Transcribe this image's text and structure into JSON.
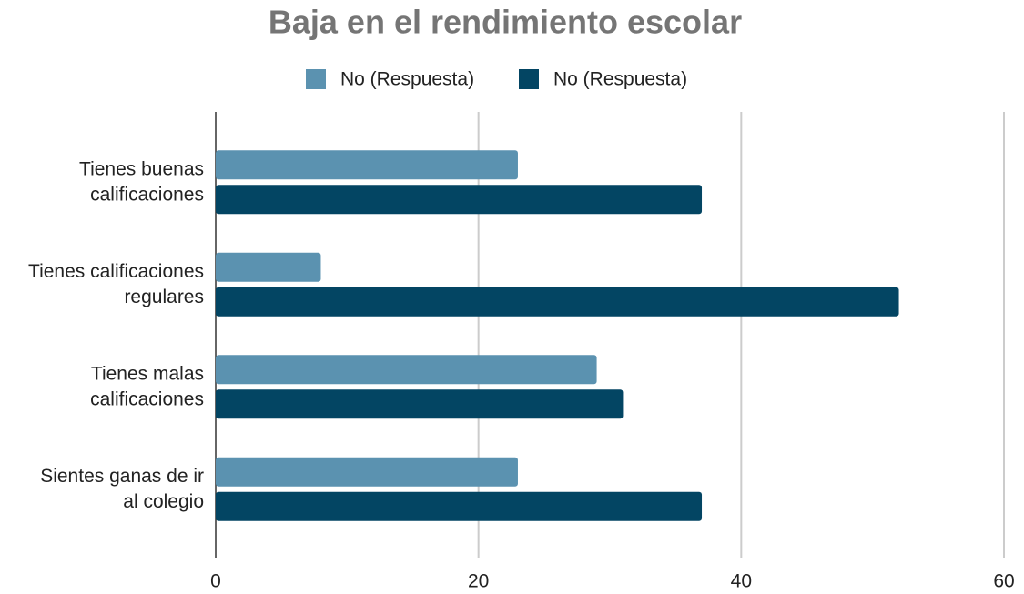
{
  "chart_data": {
    "type": "hbar",
    "title": "Baja en el rendimiento escolar",
    "categories": [
      "Tienes buenas\ncalificaciones",
      "Tienes calificaciones\nregulares",
      "Tienes malas\ncalificaciones",
      "Sientes ganas de ir\nal colegio"
    ],
    "series": [
      {
        "name": "No (Respuesta)",
        "color": "#5b92b0",
        "values": [
          23,
          8,
          29,
          23
        ]
      },
      {
        "name": "No (Respuesta)",
        "color": "#034563",
        "values": [
          37,
          52,
          31,
          37
        ]
      }
    ],
    "xlim": [
      0,
      60
    ],
    "xticks": [
      0,
      20,
      40,
      60
    ],
    "grid": true
  }
}
